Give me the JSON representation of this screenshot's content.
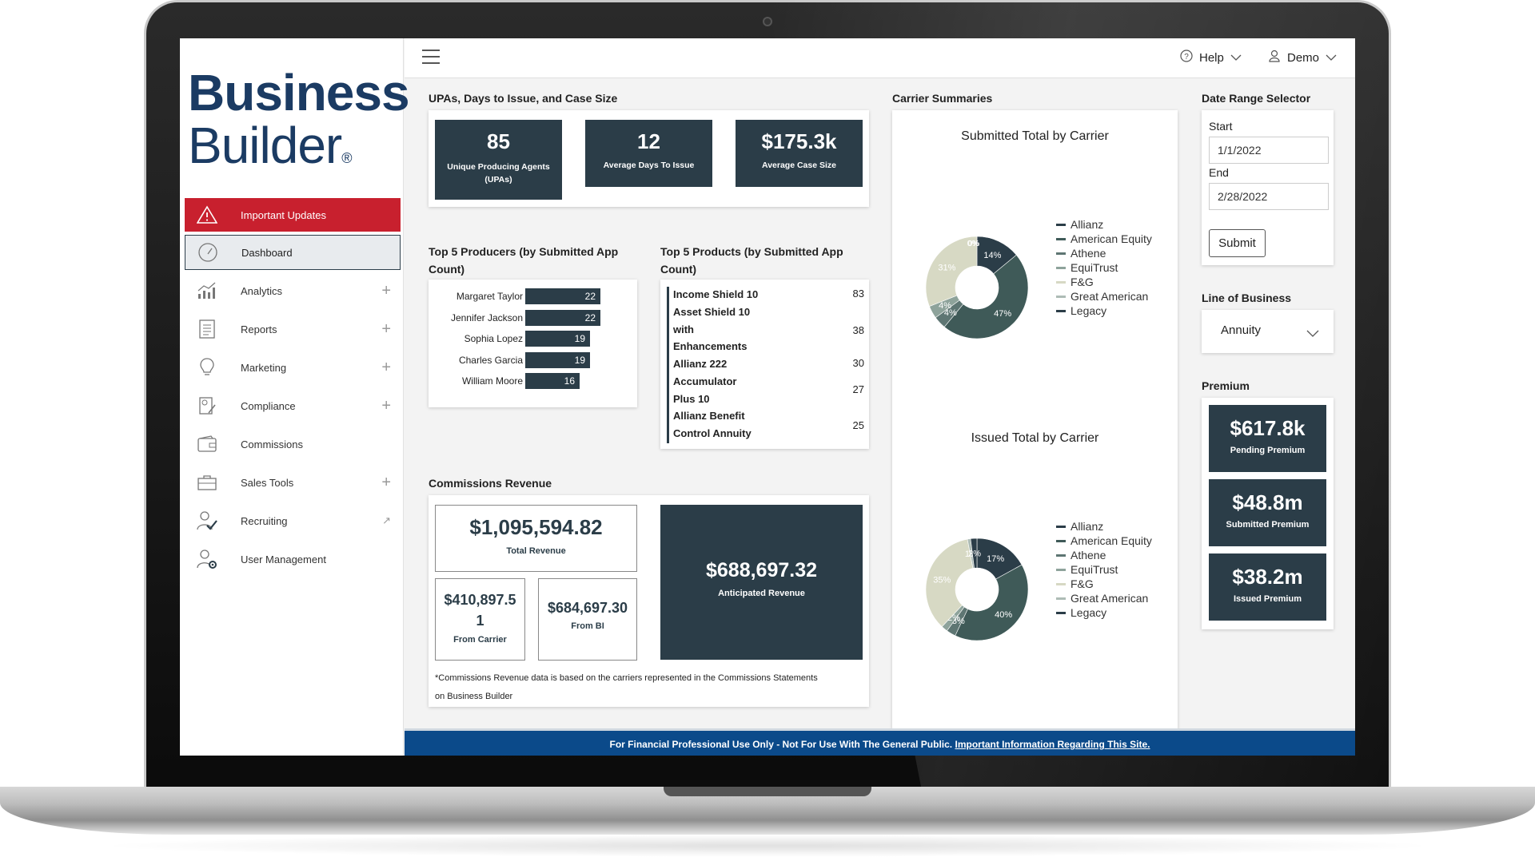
{
  "logo": {
    "line1": "Business",
    "line2": "Builder",
    "reg": "®"
  },
  "nav": {
    "items": [
      {
        "label": "Important Updates"
      },
      {
        "label": "Dashboard"
      },
      {
        "label": "Analytics"
      },
      {
        "label": "Reports"
      },
      {
        "label": "Marketing"
      },
      {
        "label": "Compliance"
      },
      {
        "label": "Commissions"
      },
      {
        "label": "Sales Tools"
      },
      {
        "label": "Recruiting"
      },
      {
        "label": "User Management"
      }
    ]
  },
  "topbar": {
    "help_label": "Help",
    "user_label": "Demo"
  },
  "upas": {
    "title": "UPAs, Days to Issue, and Case Size",
    "tiles": [
      {
        "value": "85",
        "label": "Unique Producing Agents (UPAs)"
      },
      {
        "value": "12",
        "label": "Average Days To Issue"
      },
      {
        "value": "$175.3k",
        "label": "Average Case Size"
      }
    ]
  },
  "producers": {
    "title": "Top 5 Producers (by Submitted App Count)",
    "rows": [
      {
        "name": "Margaret Taylor",
        "value": 22
      },
      {
        "name": "Jennifer Jackson",
        "value": 22
      },
      {
        "name": "Sophia Lopez",
        "value": 19
      },
      {
        "name": "Charles Garcia",
        "value": 19
      },
      {
        "name": "William Moore",
        "value": 16
      }
    ]
  },
  "products": {
    "title": "Top 5 Products (by Submitted App Count)",
    "rows": [
      {
        "name": "Income Shield 10",
        "value": "83"
      },
      {
        "name": "Asset Shield 10 with Enhancements",
        "value": "38"
      },
      {
        "name": "Allianz 222",
        "value": "30"
      },
      {
        "name": "Accumulator Plus 10",
        "value": "27"
      },
      {
        "name": "Allianz Benefit Control Annuity",
        "value": "25"
      }
    ]
  },
  "commissions": {
    "title": "Commissions Revenue",
    "total": {
      "value": "$1,095,594.82",
      "label": "Total Revenue"
    },
    "carrier": {
      "value_line1": "$410,897.5",
      "value_line2": "1",
      "label": "From Carrier"
    },
    "bi": {
      "value": "$684,697.30",
      "label": "From BI"
    },
    "anticipated": {
      "value": "$688,697.32",
      "label": "Anticipated Revenue"
    },
    "note_line1": "*Commissions Revenue data is based on the carriers represented in the Commissions Statements",
    "note_line2": "on Business Builder"
  },
  "carrier": {
    "title": "Carrier Summaries",
    "submitted_title": "Submitted Total by Carrier",
    "issued_title": "Issued Total by Carrier",
    "legend": [
      "Allianz",
      "American Equity",
      "Athene",
      "EquiTrust",
      "F&G",
      "Great American",
      "Legacy"
    ]
  },
  "colors": {
    "dark": "#2b3d48",
    "teal_dark": "#3f5a58",
    "teal_mid": "#5e7673",
    "sage": "#8ea39b",
    "tan": "#d7d9c4",
    "alert": "#c8202e",
    "footer": "#0b4a8a"
  },
  "chart_data": [
    {
      "type": "bar",
      "title": "Top 5 Producers (by Submitted App Count)",
      "categories": [
        "Margaret Taylor",
        "Jennifer Jackson",
        "Sophia Lopez",
        "Charles Garcia",
        "William Moore"
      ],
      "values": [
        22,
        22,
        19,
        19,
        16
      ]
    },
    {
      "type": "pie",
      "title": "Submitted Total by Carrier",
      "slices": [
        {
          "label": "Allianz",
          "value": 14,
          "display": "14%"
        },
        {
          "label": "American Equity",
          "value": 47,
          "display": "47%"
        },
        {
          "label": "Athene",
          "value": 4,
          "display": "4%"
        },
        {
          "label": "EquiTrust",
          "value": 4,
          "display": "4%"
        },
        {
          "label": "F&G",
          "value": 31,
          "display": "31%"
        },
        {
          "label": "Great American",
          "value": 0,
          "display": "0%"
        },
        {
          "label": "Legacy",
          "value": 0,
          "display": "0%"
        }
      ]
    },
    {
      "type": "pie",
      "title": "Issued Total by Carrier",
      "slices": [
        {
          "label": "Allianz",
          "value": 17,
          "display": "17%"
        },
        {
          "label": "American Equity",
          "value": 40,
          "display": "40%"
        },
        {
          "label": "Athene",
          "value": 3,
          "display": "3%"
        },
        {
          "label": "EquiTrust",
          "value": 2,
          "display": "2%"
        },
        {
          "label": "F&G",
          "value": 35,
          "display": "35%"
        },
        {
          "label": "Great American",
          "value": 1,
          "display": "1%"
        },
        {
          "label": "Legacy",
          "value": 2,
          "display": "2%"
        }
      ]
    }
  ],
  "date_range": {
    "title": "Date Range Selector",
    "start_label": "Start",
    "start_value": "1/1/2022",
    "end_label": "End",
    "end_value": "2/28/2022",
    "submit_label": "Submit"
  },
  "line_of_business": {
    "title": "Line of Business",
    "selected": "Annuity"
  },
  "premium": {
    "title": "Premium",
    "tiles": [
      {
        "value": "$617.8k",
        "label": "Pending Premium"
      },
      {
        "value": "$48.8m",
        "label": "Submitted Premium"
      },
      {
        "value": "$38.2m",
        "label": "Issued Premium"
      }
    ]
  },
  "footer": {
    "text": "For Financial Professional Use Only - Not For Use With The General Public.",
    "link": "Important Information Regarding This Site."
  }
}
